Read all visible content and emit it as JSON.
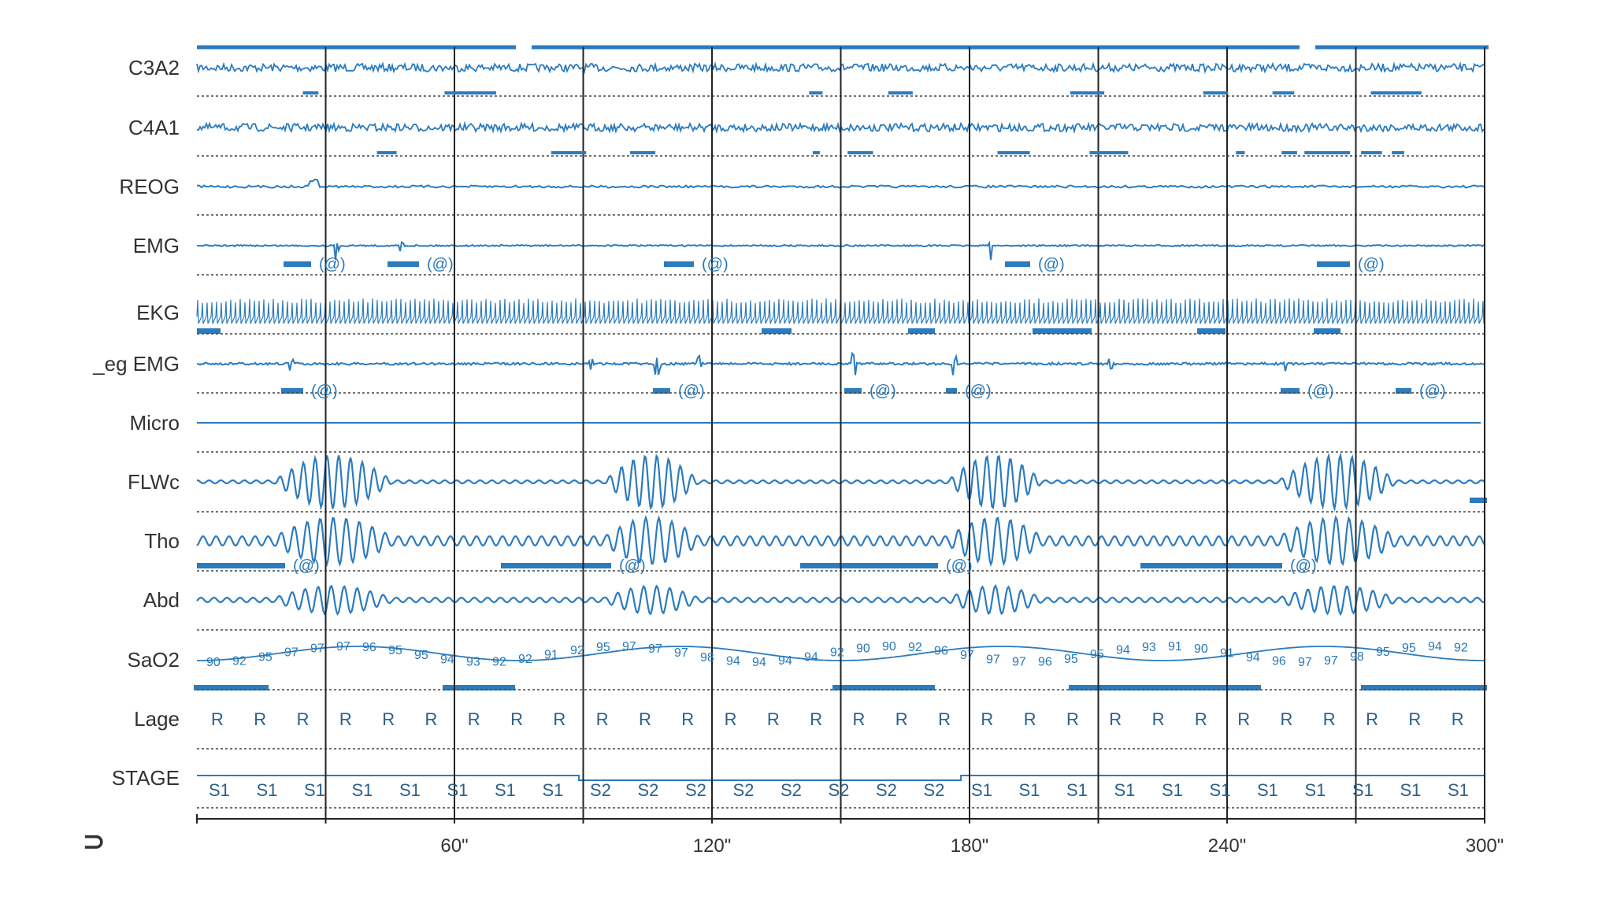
{
  "corner_mark": "⊃",
  "channels": [
    {
      "id": "c3a2",
      "label": "C3A2",
      "kind": "eeg"
    },
    {
      "id": "c4a1",
      "label": "C4A1",
      "kind": "eeg"
    },
    {
      "id": "reog",
      "label": "REOG",
      "kind": "eog"
    },
    {
      "id": "emg",
      "label": "EMG",
      "kind": "emg"
    },
    {
      "id": "ekg",
      "label": "EKG",
      "kind": "ekg"
    },
    {
      "id": "legemg",
      "label": "_eg EMG",
      "kind": "leg"
    },
    {
      "id": "micro",
      "label": "Micro",
      "kind": "micro"
    },
    {
      "id": "flwc",
      "label": "FLWc",
      "kind": "flow"
    },
    {
      "id": "tho",
      "label": "Tho",
      "kind": "tho"
    },
    {
      "id": "abd",
      "label": "Abd",
      "kind": "abd"
    },
    {
      "id": "sao2",
      "label": "SaO2",
      "kind": "sat"
    },
    {
      "id": "lage",
      "label": "Lage",
      "kind": "pos"
    },
    {
      "id": "stage",
      "label": "STAGE",
      "kind": "stage"
    }
  ],
  "time_axis": {
    "min": 0,
    "max": 300,
    "ticks": [
      "60\"",
      "120\"",
      "180\"",
      "240\"",
      "300\""
    ]
  },
  "event_marker": "(@)",
  "sao2_values": [
    "90",
    "92",
    "95",
    "97",
    "97",
    "97",
    "96",
    "95",
    "95",
    "94",
    "93",
    "92",
    "92",
    "91",
    "92",
    "95",
    "97",
    "97",
    "97",
    "98",
    "94",
    "94",
    "94",
    "94",
    "92",
    "90",
    "90",
    "92",
    "96",
    "97",
    "97",
    "97",
    "96",
    "95",
    "95",
    "94",
    "93",
    "91",
    "90",
    "91",
    "94",
    "96",
    "97",
    "97",
    "98",
    "95",
    "95",
    "94",
    "92"
  ],
  "lage_values": [
    "R",
    "R",
    "R",
    "R",
    "R",
    "R",
    "R",
    "R",
    "R",
    "R",
    "R",
    "R",
    "R",
    "R",
    "R",
    "R",
    "R",
    "R",
    "R",
    "R",
    "R",
    "R",
    "R",
    "R",
    "R",
    "R",
    "R",
    "R",
    "R",
    "R"
  ],
  "stage_values": [
    "S1",
    "S1",
    "S1",
    "S1",
    "S1",
    "S1",
    "S1",
    "S1",
    "S2",
    "S2",
    "S2",
    "S2",
    "S2",
    "S2",
    "S2",
    "S2",
    "S1",
    "S1",
    "S1",
    "S1",
    "S1",
    "S1",
    "S1",
    "S1",
    "S1",
    "S1",
    "S1"
  ],
  "colors": {
    "trace": "#2b7bbf",
    "grid": "#222222",
    "label": "#333333"
  }
}
